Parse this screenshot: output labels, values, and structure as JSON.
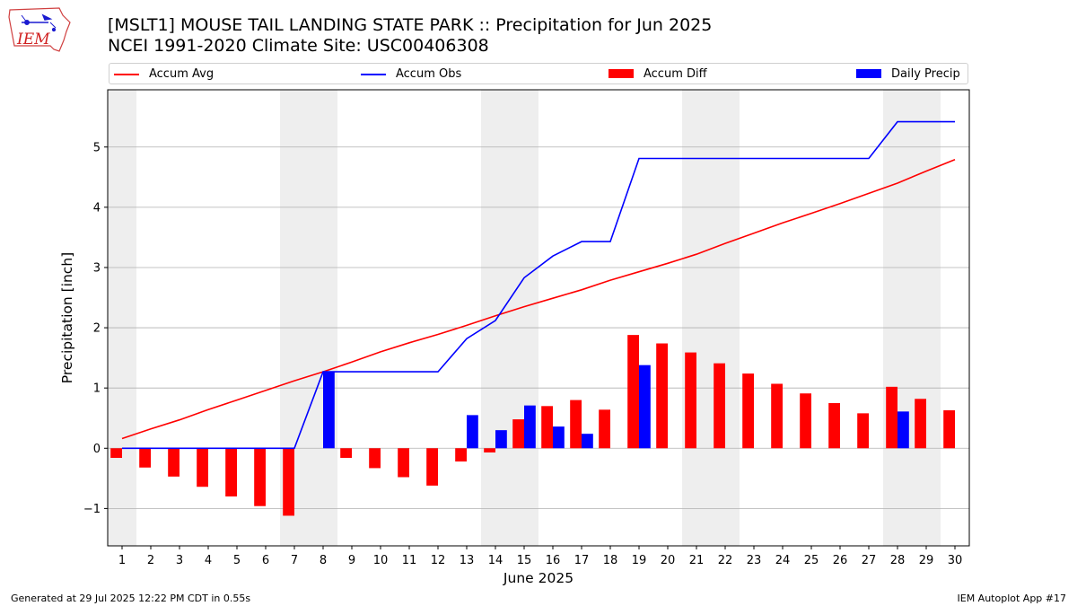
{
  "header": {
    "logo_text": "IEM",
    "title_line1": "[MSLT1] MOUSE TAIL LANDING STATE PARK :: Precipitation for Jun 2025",
    "title_line2": "NCEI 1991-2020 Climate Site: USC00406308"
  },
  "footer": {
    "generated": "Generated at 29 Jul 2025 12:22 PM CDT in 0.55s",
    "app": "IEM Autoplot App #17"
  },
  "chart_data": {
    "type": "bar",
    "xlabel": "June 2025",
    "ylabel": "Precipitation [inch]",
    "ylim": [
      -1.62,
      5.95
    ],
    "yticks": [
      -1,
      0,
      1,
      2,
      3,
      4,
      5
    ],
    "ytick_labels": [
      "−1",
      "0",
      "1",
      "2",
      "3",
      "4",
      "5"
    ],
    "grid": "horizontal",
    "legend_placement": "top (above plot)",
    "weekend_shading_days": [
      1,
      7,
      8,
      14,
      15,
      21,
      22,
      28,
      29
    ],
    "x": [
      1,
      2,
      3,
      4,
      5,
      6,
      7,
      8,
      9,
      10,
      11,
      12,
      13,
      14,
      15,
      16,
      17,
      18,
      19,
      20,
      21,
      22,
      23,
      24,
      25,
      26,
      27,
      28,
      29,
      30
    ],
    "series": [
      {
        "name": "Accum Avg",
        "kind": "line",
        "color": "#ff0000",
        "values": [
          0.16,
          0.32,
          0.47,
          0.64,
          0.8,
          0.96,
          1.12,
          1.27,
          1.43,
          1.6,
          1.75,
          1.89,
          2.04,
          2.2,
          2.35,
          2.49,
          2.63,
          2.79,
          2.93,
          3.07,
          3.22,
          3.4,
          3.57,
          3.74,
          3.9,
          4.06,
          4.23,
          4.4,
          4.6,
          4.79
        ]
      },
      {
        "name": "Accum Obs",
        "kind": "line",
        "color": "#0000ff",
        "values": [
          0,
          0,
          0,
          0,
          0,
          0,
          0,
          1.27,
          1.27,
          1.27,
          1.27,
          1.27,
          1.82,
          2.12,
          2.83,
          3.19,
          3.43,
          3.43,
          4.81,
          4.81,
          4.81,
          4.81,
          4.81,
          4.81,
          4.81,
          4.81,
          4.81,
          5.42,
          5.42,
          5.42
        ]
      },
      {
        "name": "Accum Diff",
        "kind": "bar",
        "color": "#ff0000",
        "values": [
          -0.16,
          -0.32,
          -0.47,
          -0.64,
          -0.8,
          -0.96,
          -1.12,
          0,
          -0.16,
          -0.33,
          -0.48,
          -0.62,
          -0.22,
          -0.07,
          0.48,
          0.7,
          0.8,
          0.64,
          1.88,
          1.74,
          1.59,
          1.41,
          1.24,
          1.07,
          0.91,
          0.75,
          0.58,
          1.02,
          0.82,
          0.63
        ]
      },
      {
        "name": "Daily Precip",
        "kind": "bar",
        "color": "#0000ff",
        "values": [
          0,
          0,
          0,
          0,
          0,
          0,
          0,
          1.27,
          0,
          0,
          0,
          0,
          0.55,
          0.3,
          0.71,
          0.36,
          0.24,
          0,
          1.38,
          0,
          0,
          0,
          0,
          0,
          0,
          0,
          0,
          0.61,
          0,
          0
        ]
      }
    ]
  }
}
